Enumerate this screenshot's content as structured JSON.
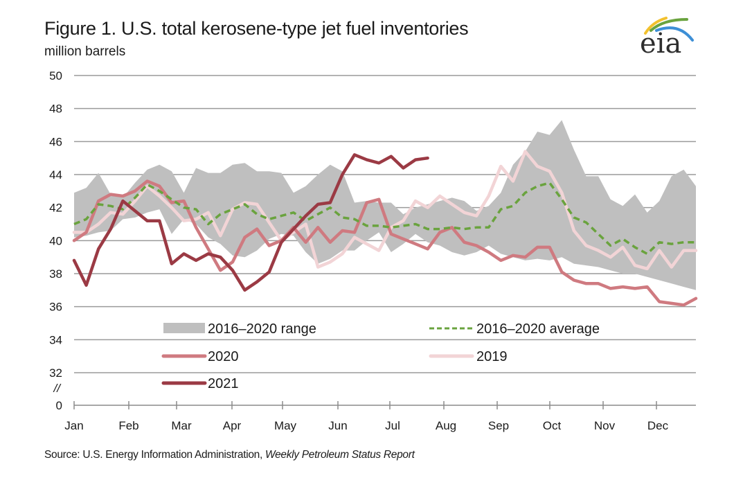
{
  "title": "Figure 1. U.S. total kerosene-type jet fuel inventories",
  "subtitle": "million barrels",
  "source": {
    "prefix": "Source: U.S. Energy Information Administration,",
    "italic": "Weekly Petroleum Status Report"
  },
  "logo": {
    "text": "eia",
    "icon": "eia-logo-icon",
    "arc_colors": [
      "#f2c12e",
      "#6aa33e",
      "#3d8fd6"
    ]
  },
  "chart_data": {
    "type": "line",
    "title": "Figure 1. U.S. total kerosene-type jet fuel inventories",
    "xlabel": "",
    "ylabel": "million barrels",
    "ylim": [
      32,
      50
    ],
    "y_axis_break": true,
    "y_ticks": [
      "50",
      "48",
      "46",
      "44",
      "42",
      "40",
      "38",
      "36",
      "34",
      "32",
      "0"
    ],
    "y_break_label": "//",
    "x_ticks": [
      "Jan",
      "Feb",
      "Mar",
      "Apr",
      "May",
      "Jun",
      "Jul",
      "Aug",
      "Sep",
      "Oct",
      "Nov",
      "Dec"
    ],
    "x_unit": "week of year (1-52)",
    "grid": true,
    "legend_position": "bottom-inside",
    "legend": [
      {
        "label": "2016–2020 range",
        "kind": "area",
        "color": "#bfbfbf"
      },
      {
        "label": "2016–2020 average",
        "kind": "dashed",
        "color": "#6aa33e"
      },
      {
        "label": "2020",
        "kind": "line",
        "color": "#cf7a80"
      },
      {
        "label": "2019",
        "kind": "line",
        "color": "#f2d4d6"
      },
      {
        "label": "2021",
        "kind": "line",
        "color": "#9b3a44"
      }
    ],
    "range": {
      "name": "2016–2020 range",
      "color": "#bfbfbf",
      "high": [
        42.9,
        43.2,
        44.1,
        42.8,
        42.6,
        43.5,
        44.3,
        44.6,
        44.2,
        42.9,
        44.4,
        44.1,
        44.1,
        44.6,
        44.7,
        44.2,
        44.2,
        44.1,
        42.9,
        43.3,
        44.0,
        44.6,
        44.2,
        42.3,
        42.4,
        42.3,
        42.3,
        41.6,
        42.0,
        42.2,
        42.4,
        42.6,
        42.4,
        41.8,
        42.1,
        42.9,
        44.6,
        45.4,
        46.6,
        46.4,
        47.3,
        45.5,
        43.9,
        43.9,
        42.5,
        42.1,
        42.8,
        41.7,
        42.4,
        43.9,
        44.3,
        43.3
      ],
      "low": [
        40.2,
        40.3,
        40.5,
        40.6,
        41.3,
        41.4,
        41.7,
        41.9,
        40.4,
        41.3,
        41.0,
        40.2,
        39.8,
        39.1,
        39.0,
        39.4,
        40.1,
        40.4,
        40.3,
        39.3,
        38.6,
        38.9,
        39.4,
        39.4,
        40.0,
        40.5,
        39.3,
        39.8,
        40.4,
        39.9,
        39.7,
        39.3,
        39.1,
        39.3,
        39.7,
        39.2,
        39.0,
        38.8,
        38.9,
        38.8,
        39.0,
        38.6,
        38.5,
        38.4,
        38.2,
        38.0,
        38.0,
        37.8,
        37.6,
        37.4,
        37.2,
        37.0
      ]
    },
    "series": [
      {
        "name": "2016–2020 average",
        "style": "dashed",
        "color": "#6aa33e",
        "values": [
          41.0,
          41.3,
          42.2,
          42.1,
          41.9,
          42.6,
          43.4,
          43.0,
          42.5,
          42.0,
          41.9,
          41.0,
          41.6,
          41.9,
          42.2,
          41.6,
          41.3,
          41.5,
          41.7,
          41.2,
          41.6,
          42.0,
          41.4,
          41.3,
          40.9,
          40.9,
          40.8,
          40.9,
          41.0,
          40.7,
          40.7,
          40.8,
          40.7,
          40.8,
          40.8,
          41.9,
          42.1,
          42.9,
          43.3,
          43.5,
          42.5,
          41.4,
          41.1,
          40.4,
          39.7,
          40.1,
          39.6,
          39.2,
          39.9,
          39.8,
          39.9,
          39.9
        ]
      },
      {
        "name": "2020",
        "style": "solid",
        "color": "#cf7a80",
        "values": [
          40.0,
          40.5,
          42.4,
          42.8,
          42.7,
          43.0,
          43.6,
          43.3,
          42.3,
          42.4,
          40.8,
          39.5,
          38.2,
          38.7,
          40.2,
          40.7,
          39.7,
          40.0,
          40.8,
          39.9,
          40.8,
          39.9,
          40.6,
          40.5,
          42.3,
          42.5,
          40.4,
          40.1,
          39.8,
          39.5,
          40.5,
          40.8,
          39.9,
          39.7,
          39.3,
          38.8,
          39.1,
          39.0,
          39.6,
          39.6,
          38.1,
          37.6,
          37.4,
          37.4,
          37.1,
          37.2,
          37.1,
          37.2,
          36.3,
          36.2,
          36.1,
          36.5
        ]
      },
      {
        "name": "2019",
        "style": "solid",
        "color": "#f2d4d6",
        "values": [
          40.5,
          40.5,
          41.0,
          41.7,
          41.6,
          42.4,
          43.3,
          42.7,
          42.0,
          41.2,
          41.3,
          41.7,
          40.3,
          41.9,
          42.3,
          42.2,
          41.1,
          40.0,
          40.5,
          41.0,
          38.4,
          38.7,
          39.2,
          40.2,
          39.8,
          39.4,
          40.8,
          41.2,
          42.4,
          42.0,
          42.7,
          42.2,
          41.7,
          41.5,
          42.7,
          44.5,
          43.6,
          45.4,
          44.5,
          44.2,
          42.9,
          40.6,
          39.7,
          39.4,
          39.0,
          39.6,
          38.5,
          38.3,
          39.4,
          38.4,
          39.4,
          39.4
        ]
      },
      {
        "name": "2021",
        "style": "solid",
        "color": "#9b3a44",
        "values": [
          38.8,
          37.3,
          39.5,
          40.7,
          42.4,
          41.8,
          41.2,
          41.2,
          38.6,
          39.2,
          38.8,
          39.2,
          39.0,
          38.2,
          37.0,
          37.5,
          38.1,
          39.9,
          40.7,
          41.5,
          42.2,
          42.3,
          44.0,
          45.2,
          44.9,
          44.7,
          45.1,
          44.4,
          44.9,
          45.0
        ],
        "note": "data ends late July"
      }
    ]
  }
}
